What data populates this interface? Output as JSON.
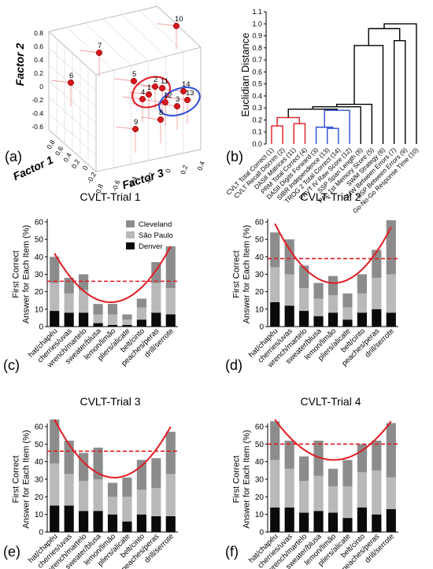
{
  "colors": {
    "cleveland": "#8c8c8c",
    "sao_paulo": "#b9b9b9",
    "denver": "#0a0a0a",
    "accent_red": "#e11b22",
    "accent_blue": "#2d4fd6"
  },
  "panel_labels": [
    "(a)",
    "(b)",
    "(c)",
    "(d)",
    "(e)",
    "(f)"
  ],
  "chart_data": [
    {
      "type": "scatter",
      "dimensions": 3,
      "axes": [
        "Factor 1",
        "Factor 2",
        "Factor 3"
      ],
      "tick_labels": {
        "factor1": [
          "0.8",
          "0.6",
          "0.4",
          "0.2",
          "0",
          "-0.2"
        ],
        "factor2": [
          "0.8",
          "0.6",
          "0.4",
          "0.2",
          "0",
          "-0.2",
          "-0.4",
          "-0.6"
        ],
        "factor3": [
          "-0.8",
          "-0.6",
          "-0.4",
          "-0.2",
          "0",
          "0.2",
          "0.4"
        ]
      },
      "points": [
        {
          "label": "1",
          "cluster": "red"
        },
        {
          "label": "2",
          "cluster": "red"
        },
        {
          "label": "3",
          "cluster": "blue"
        },
        {
          "label": "4",
          "cluster": "red"
        },
        {
          "label": "5",
          "cluster": "none"
        },
        {
          "label": "6",
          "cluster": "none"
        },
        {
          "label": "7",
          "cluster": "none"
        },
        {
          "label": "8",
          "cluster": "none"
        },
        {
          "label": "9",
          "cluster": "none"
        },
        {
          "label": "10",
          "cluster": "none"
        },
        {
          "label": "11",
          "cluster": "red"
        },
        {
          "label": "12",
          "cluster": "blue"
        },
        {
          "label": "13",
          "cluster": "blue"
        },
        {
          "label": "14",
          "cluster": "blue"
        }
      ]
    },
    {
      "type": "dendrogram",
      "ylabel": "Euclidian Distance",
      "ylim": [
        0,
        1.1
      ],
      "yticks": [
        "0.0",
        "0.1",
        "0.2",
        "0.3",
        "0.4",
        "0.5",
        "0.6",
        "0.7",
        "0.8",
        "0.9",
        "1.0",
        "1.1"
      ],
      "leaves": [
        "CVLT Total Correct (1)",
        "CVLT Recall Discrim (2)",
        "DASII Matrices (11)",
        "PRM Total Correct (4)",
        "DASII Digits Forward (3)",
        "SIBR Independence (13)",
        "TROG 2 Total Correct (14)",
        "PPVT IV Raw Score (12)",
        "SSP Span Length (8)",
        "PAL 1st Memory Score (5)",
        "SWM Strategy (6)",
        "SMW Between Errors (7)",
        "SSP Between Errors (9)",
        "Go-No-Go Response Time (10)"
      ],
      "leaf_colors": [
        "red",
        "red",
        "red",
        "red",
        "blue",
        "blue",
        "blue",
        "blue",
        "black",
        "black",
        "black",
        "black",
        "black",
        "black"
      ],
      "merges": [
        {
          "a": 0,
          "b": 1,
          "height": 0.15,
          "color": "red"
        },
        {
          "a": 2,
          "b": 3,
          "height": 0.17,
          "color": "red"
        },
        {
          "a": 14,
          "b": 15,
          "height": 0.22,
          "color": "red"
        },
        {
          "a": 5,
          "b": 6,
          "height": 0.13,
          "color": "blue"
        },
        {
          "a": 4,
          "b": 17,
          "height": 0.14,
          "color": "blue"
        },
        {
          "a": 18,
          "b": 7,
          "height": 0.28,
          "color": "blue"
        },
        {
          "a": 16,
          "b": 19,
          "height": 0.29,
          "color": "black"
        },
        {
          "a": 20,
          "b": 8,
          "height": 0.31,
          "color": "black"
        },
        {
          "a": 21,
          "b": 9,
          "height": 0.33,
          "color": "black"
        },
        {
          "a": 22,
          "b": 10,
          "height": 0.82,
          "color": "black"
        },
        {
          "a": 11,
          "b": 12,
          "height": 0.86,
          "color": "black"
        },
        {
          "a": 23,
          "b": 24,
          "height": 0.96,
          "color": "black"
        },
        {
          "a": 25,
          "b": 13,
          "height": 1.0,
          "color": "black"
        }
      ]
    },
    {
      "type": "bar",
      "stacked": true,
      "title": "CVLT-Trial 1",
      "ylabel": "First Correct Answer for Each Item (%)",
      "ylim": [
        0,
        60
      ],
      "yticks": [
        "0",
        "10",
        "20",
        "30",
        "40",
        "50",
        "60"
      ],
      "categories": [
        "hat/chapéu",
        "cherries/uvas",
        "wrench/martelo",
        "sweater/blusa",
        "lemon/limão",
        "pliers/alicate",
        "belt/cinto",
        "peaches/peras",
        "drill/serrote"
      ],
      "legend": {
        "placement": "top-right",
        "entries": [
          "Cleveland",
          "São Paulo",
          "Denver"
        ]
      },
      "series": [
        {
          "name": "Denver",
          "values": [
            9,
            8,
            8,
            2,
            1,
            1,
            4,
            8,
            7
          ]
        },
        {
          "name": "São Paulo",
          "values": [
            16,
            11,
            13,
            5,
            6,
            3,
            7,
            17,
            15
          ]
        },
        {
          "name": "Cleveland",
          "values": [
            15,
            9,
            9,
            6,
            6,
            3,
            5,
            12,
            24
          ]
        }
      ],
      "reference_line": 26,
      "curve": {
        "points": [
          [
            0,
            42
          ],
          [
            4,
            14
          ],
          [
            8,
            46
          ]
        ]
      }
    },
    {
      "type": "bar",
      "stacked": true,
      "title": "CVLT-Trial 2",
      "ylabel": "First Correct Answer for Each Item (%)",
      "ylim": [
        0,
        60
      ],
      "yticks": [
        "0",
        "10",
        "20",
        "30",
        "40",
        "50",
        "60"
      ],
      "categories": [
        "hat/chapéu",
        "cherries/uvas",
        "wrench/martelo",
        "sweater/blusa",
        "lemon/limão",
        "pliers/alicate",
        "belt/cinto",
        "peaches/peras",
        "drill/serrote"
      ],
      "series": [
        {
          "name": "Denver",
          "values": [
            14,
            12,
            9,
            6,
            8,
            4,
            8,
            10,
            8
          ]
        },
        {
          "name": "São Paulo",
          "values": [
            20,
            18,
            13,
            10,
            10,
            7,
            11,
            18,
            22
          ]
        },
        {
          "name": "Cleveland",
          "values": [
            20,
            20,
            13,
            9,
            11,
            8,
            11,
            16,
            31
          ]
        }
      ],
      "reference_line": 39,
      "curve": {
        "points": [
          [
            0,
            59
          ],
          [
            4,
            25
          ],
          [
            8,
            57
          ]
        ]
      }
    },
    {
      "type": "bar",
      "stacked": true,
      "title": "CVLT-Trial 3",
      "ylabel": "First Correct Answer for Each Item (%)",
      "ylim": [
        0,
        60
      ],
      "yticks": [
        "0",
        "10",
        "20",
        "30",
        "40",
        "50",
        "60"
      ],
      "categories": [
        "hat/chapéu",
        "cherries/uvas",
        "wrench/martelo",
        "sweater/blusa",
        "lemon/limão",
        "pliers/alicate",
        "belt/cinto",
        "peaches/peras",
        "drill/serrote"
      ],
      "series": [
        {
          "name": "Denver",
          "values": [
            15,
            15,
            12,
            12,
            10,
            6,
            10,
            9,
            9
          ]
        },
        {
          "name": "São Paulo",
          "values": [
            24,
            18,
            17,
            18,
            10,
            14,
            14,
            16,
            24
          ]
        },
        {
          "name": "Cleveland",
          "values": [
            25,
            19,
            16,
            18,
            8,
            11,
            17,
            17,
            24
          ]
        }
      ],
      "reference_line": 46,
      "curve": {
        "points": [
          [
            0,
            64
          ],
          [
            4,
            31
          ],
          [
            8,
            60
          ]
        ]
      }
    },
    {
      "type": "bar",
      "stacked": true,
      "title": "CVLT-Trial 4",
      "ylabel": "First Correct Answer for Each Item (%)",
      "ylim": [
        0,
        60
      ],
      "yticks": [
        "0",
        "10",
        "20",
        "30",
        "40",
        "50",
        "60"
      ],
      "categories": [
        "hat/chapéu",
        "cherries/uvas",
        "wrench/martelo",
        "sweater/blusa",
        "lemon/limão",
        "pliers/alicate",
        "belt/cinto",
        "peaches/peras",
        "drill/serrote"
      ],
      "series": [
        {
          "name": "Denver",
          "values": [
            14,
            14,
            11,
            12,
            11,
            8,
            14,
            10,
            13
          ]
        },
        {
          "name": "São Paulo",
          "values": [
            27,
            22,
            18,
            20,
            15,
            18,
            20,
            25,
            18
          ]
        },
        {
          "name": "Cleveland",
          "values": [
            22,
            16,
            14,
            20,
            10,
            15,
            16,
            17,
            31
          ]
        }
      ],
      "reference_line": 50,
      "curve": {
        "points": [
          [
            0,
            64
          ],
          [
            4,
            41
          ],
          [
            8,
            63
          ]
        ]
      }
    }
  ]
}
